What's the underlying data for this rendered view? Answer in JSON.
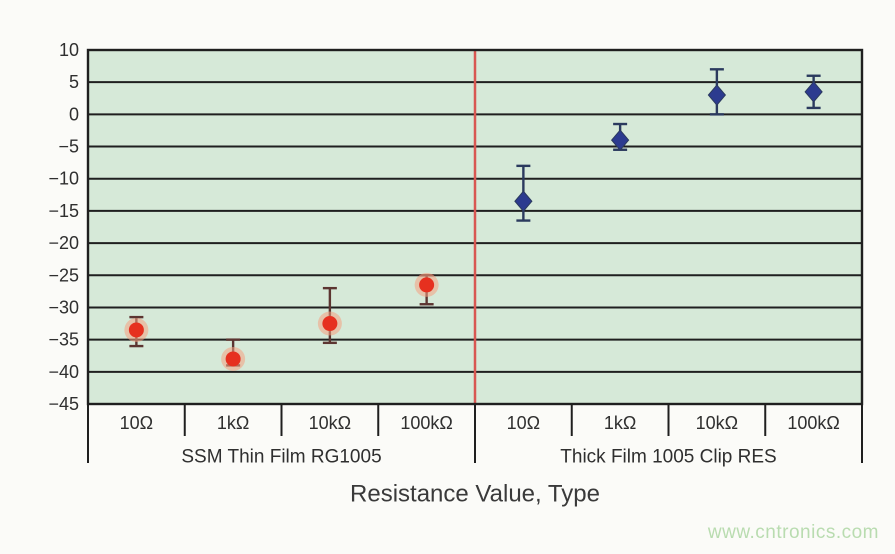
{
  "page": {
    "background": "#fbfbf8"
  },
  "watermark": {
    "text": "www.cntronics.com",
    "color": "#b9dcb0"
  },
  "chart_data": {
    "type": "scatter",
    "title": "",
    "xlabel": "Resistance Value, Type",
    "ylabel": "",
    "ylim": [
      -45,
      10
    ],
    "yticks": [
      10,
      5,
      0,
      -5,
      -10,
      -15,
      -20,
      -25,
      -30,
      -35,
      -40,
      -45
    ],
    "grid": true,
    "legend": "none",
    "plot_bg": "#d6e9d8",
    "grid_color": "#1f1f1f",
    "border_color": "#1f1f1f",
    "divider_color": "#d85752",
    "axis_text_color": "#2f2f2f",
    "title_text_color": "#3a3a3a",
    "groups": [
      {
        "label": "SSM Thin Film RG1005",
        "categories": [
          "10Ω",
          "1kΩ",
          "10kΩ",
          "100kΩ"
        ]
      },
      {
        "label": "Thick Film 1005 Clip RES",
        "categories": [
          "10Ω",
          "1kΩ",
          "10kΩ",
          "100kΩ"
        ]
      }
    ],
    "series": [
      {
        "name": "SSM Thin Film RG1005",
        "group": 0,
        "marker": "circle",
        "color": "#e6301f",
        "halo_color": "rgba(246,160,130,0.55)",
        "whisker_color": "#5c3531",
        "points": [
          {
            "category": "10Ω",
            "value": -33.5,
            "err_high": -31.5,
            "err_low": -36
          },
          {
            "category": "1kΩ",
            "value": -38,
            "err_high": -35,
            "err_low": -39
          },
          {
            "category": "10kΩ",
            "value": -32.5,
            "err_high": -27,
            "err_low": -35.5
          },
          {
            "category": "100kΩ",
            "value": -26.5,
            "err_high": -25,
            "err_low": -29.5
          }
        ]
      },
      {
        "name": "Thick Film 1005 Clip RES",
        "group": 1,
        "marker": "diamond",
        "color": "#2c3b8f",
        "halo_color": "rgba(120,140,200,0.25)",
        "whisker_color": "#2b3a5e",
        "points": [
          {
            "category": "10Ω",
            "value": -13.5,
            "err_high": -8,
            "err_low": -16.5
          },
          {
            "category": "1kΩ",
            "value": -4,
            "err_high": -1.5,
            "err_low": -5.5
          },
          {
            "category": "10kΩ",
            "value": 3,
            "err_high": 7,
            "err_low": 0
          },
          {
            "category": "100kΩ",
            "value": 3.5,
            "err_high": 6,
            "err_low": 1
          }
        ]
      }
    ]
  }
}
